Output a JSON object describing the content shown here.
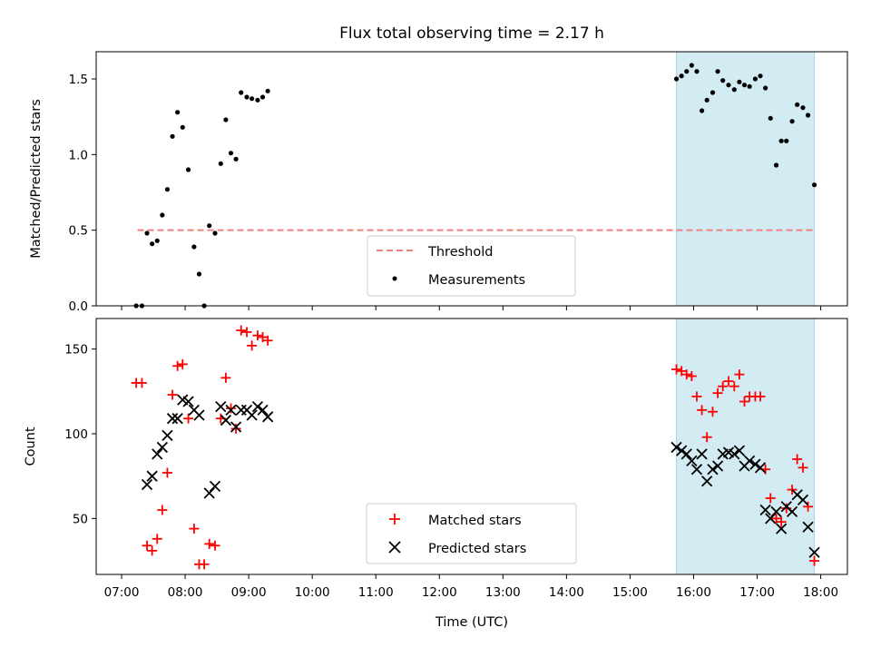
{
  "chart_data": [
    {
      "type": "scatter",
      "title": "Flux total observing time = 2.17 h",
      "xlabel": "",
      "ylabel": "Matched/Predicted stars",
      "x_unit": "hours (UTC)",
      "xlim": [
        6.6,
        18.42
      ],
      "ylim": [
        0,
        1.68
      ],
      "yticks": [
        0.0,
        0.5,
        1.0,
        1.5
      ],
      "ytick_labels": [
        "0.0",
        "0.5",
        "1.0",
        "1.5"
      ],
      "highlight_span": [
        15.73,
        17.9
      ],
      "highlight_color": "#d3ebf2",
      "legend_placement": "lower center",
      "series": [
        {
          "name": "Threshold",
          "kind": "dashed-line",
          "color": "#f08080",
          "x": [
            7.25,
            17.9
          ],
          "y": [
            0.5,
            0.5
          ]
        },
        {
          "name": "Measurements",
          "kind": "points",
          "color": "#000000",
          "x": [
            7.23,
            7.32,
            7.4,
            7.48,
            7.56,
            7.64,
            7.72,
            7.8,
            7.88,
            7.96,
            8.05,
            8.14,
            8.22,
            8.3,
            8.38,
            8.47,
            8.56,
            8.64,
            8.72,
            8.8,
            8.88,
            8.97,
            9.05,
            9.14,
            9.22,
            9.3,
            15.73,
            15.81,
            15.89,
            15.97,
            16.05,
            16.13,
            16.21,
            16.3,
            16.38,
            16.46,
            16.55,
            16.64,
            16.72,
            16.8,
            16.88,
            16.97,
            17.05,
            17.13,
            17.21,
            17.3,
            17.38,
            17.46,
            17.55,
            17.63,
            17.72,
            17.8,
            17.9
          ],
          "y": [
            0.0,
            0.0,
            0.48,
            0.41,
            0.43,
            0.6,
            0.77,
            1.12,
            1.28,
            1.18,
            0.9,
            0.39,
            0.21,
            0.0,
            0.53,
            0.48,
            0.94,
            1.23,
            1.01,
            0.97,
            1.41,
            1.38,
            1.37,
            1.36,
            1.38,
            1.42,
            1.5,
            1.52,
            1.55,
            1.59,
            1.55,
            1.29,
            1.36,
            1.41,
            1.55,
            1.49,
            1.46,
            1.43,
            1.48,
            1.46,
            1.45,
            1.5,
            1.52,
            1.44,
            1.24,
            0.93,
            1.09,
            1.09,
            1.22,
            1.33,
            1.31,
            1.26,
            0.8
          ]
        }
      ]
    },
    {
      "type": "scatter",
      "title": "",
      "xlabel": "Time (UTC)",
      "ylabel": "Count",
      "x_unit": "hours (UTC)",
      "xlim": [
        6.6,
        18.42
      ],
      "ylim": [
        17,
        168
      ],
      "xticks": [
        7,
        8,
        9,
        10,
        11,
        12,
        13,
        14,
        15,
        16,
        17,
        18
      ],
      "xtick_labels": [
        "07:00",
        "08:00",
        "09:00",
        "10:00",
        "11:00",
        "12:00",
        "13:00",
        "14:00",
        "15:00",
        "16:00",
        "17:00",
        "18:00"
      ],
      "yticks": [
        50,
        100,
        150
      ],
      "ytick_labels": [
        "50",
        "100",
        "150"
      ],
      "highlight_span": [
        15.73,
        17.9
      ],
      "highlight_color": "#d3ebf2",
      "legend_placement": "lower center",
      "series": [
        {
          "name": "Matched stars",
          "marker": "plus",
          "color": "#ff0000",
          "x": [
            7.23,
            7.32,
            7.4,
            7.48,
            7.56,
            7.64,
            7.72,
            7.8,
            7.88,
            7.96,
            8.05,
            8.14,
            8.22,
            8.3,
            8.38,
            8.47,
            8.56,
            8.64,
            8.72,
            8.8,
            8.88,
            8.97,
            9.05,
            9.14,
            9.22,
            9.3,
            15.73,
            15.81,
            15.89,
            15.97,
            16.05,
            16.13,
            16.21,
            16.3,
            16.38,
            16.46,
            16.55,
            16.64,
            16.72,
            16.8,
            16.88,
            16.97,
            17.05,
            17.13,
            17.21,
            17.3,
            17.38,
            17.46,
            17.55,
            17.63,
            17.72,
            17.8,
            17.9
          ],
          "y": [
            130,
            130,
            34,
            31,
            38,
            55,
            77,
            123,
            140,
            141,
            109,
            44,
            23,
            23,
            35,
            34,
            109,
            133,
            115,
            103,
            161,
            160,
            152,
            158,
            157,
            155,
            138,
            137,
            135,
            134,
            122,
            114,
            98,
            113,
            124,
            128,
            131,
            128,
            135,
            119,
            122,
            122,
            122,
            79,
            62,
            50,
            48,
            56,
            67,
            85,
            80,
            57,
            25
          ]
        },
        {
          "name": "Predicted stars",
          "marker": "x",
          "color": "#000000",
          "x": [
            7.4,
            7.48,
            7.56,
            7.64,
            7.72,
            7.8,
            7.88,
            7.96,
            8.05,
            8.14,
            8.22,
            8.38,
            8.47,
            8.56,
            8.64,
            8.72,
            8.8,
            8.88,
            8.97,
            9.05,
            9.14,
            9.22,
            9.3,
            15.73,
            15.81,
            15.89,
            15.97,
            16.05,
            16.13,
            16.21,
            16.3,
            16.38,
            16.46,
            16.55,
            16.64,
            16.72,
            16.8,
            16.88,
            16.97,
            17.05,
            17.13,
            17.21,
            17.3,
            17.38,
            17.46,
            17.55,
            17.63,
            17.72,
            17.8,
            17.9
          ],
          "y": [
            70,
            75,
            88,
            92,
            99,
            109,
            109,
            120,
            119,
            114,
            111,
            65,
            69,
            116,
            108,
            114,
            104,
            114,
            114,
            111,
            116,
            114,
            110,
            92,
            90,
            88,
            84,
            79,
            88,
            72,
            79,
            81,
            88,
            89,
            88,
            90,
            81,
            84,
            82,
            80,
            55,
            50,
            54,
            44,
            57,
            54,
            64,
            61,
            45,
            30
          ]
        }
      ]
    }
  ]
}
